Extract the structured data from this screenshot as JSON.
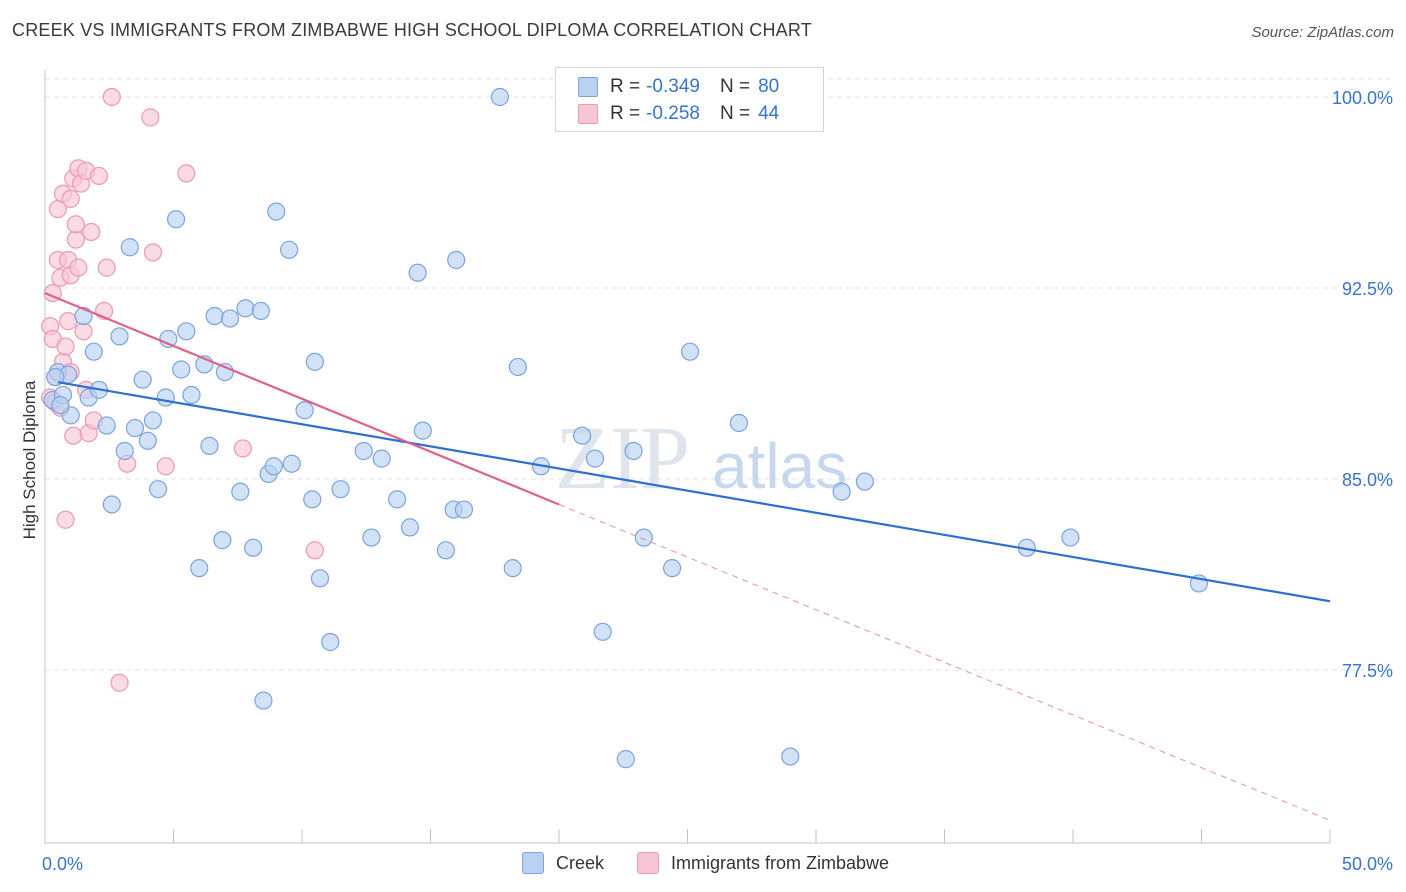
{
  "title": "CREEK VS IMMIGRANTS FROM ZIMBABWE HIGH SCHOOL DIPLOMA CORRELATION CHART",
  "source": "Source: ZipAtlas.com",
  "watermark": {
    "zip": "ZIP",
    "atlas": "atlas"
  },
  "legend": {
    "creek": {
      "r_label": "R =",
      "r_value": "-0.349",
      "n_label": "N =",
      "n_value": "80"
    },
    "zimbabwe": {
      "r_label": "R =",
      "r_value": "-0.258",
      "n_label": "N =",
      "n_value": "44"
    }
  },
  "colors": {
    "creek_fill": "#b9d2f2",
    "creek_stroke": "#7ba3de",
    "creek_line": "#2e6fd0",
    "zim_fill": "#f7c6d4",
    "zim_stroke": "#ec99b2",
    "zim_line": "#e0608c",
    "tick_text": "#3674cd",
    "grid": "#dde2e8"
  },
  "chart_data": {
    "type": "scatter",
    "title": "CREEK VS IMMIGRANTS FROM ZIMBABWE HIGH SCHOOL DIPLOMA CORRELATION CHART",
    "xlabel": "",
    "ylabel": "High School Diploma",
    "xlim": [
      0,
      50
    ],
    "ylim": [
      71.0,
      101.5
    ],
    "x_tick_labels": [
      "0.0%",
      "50.0%"
    ],
    "y_ticks": [
      77.5,
      85.0,
      92.5,
      100.0
    ],
    "y_tick_labels": [
      "77.5%",
      "85.0%",
      "92.5%",
      "100.0%"
    ],
    "grid": true,
    "legend_position": "top-center",
    "series": [
      {
        "name": "Creek",
        "points": [
          [
            0.3,
            88.1
          ],
          [
            0.5,
            89.2
          ],
          [
            0.7,
            88.3
          ],
          [
            0.9,
            89.1
          ],
          [
            1.0,
            87.5
          ],
          [
            1.5,
            91.4
          ],
          [
            1.7,
            88.2
          ],
          [
            1.9,
            90.0
          ],
          [
            2.1,
            88.5
          ],
          [
            2.4,
            87.1
          ],
          [
            2.6,
            84.0
          ],
          [
            2.9,
            90.6
          ],
          [
            3.1,
            86.1
          ],
          [
            3.3,
            94.1
          ],
          [
            3.5,
            87.0
          ],
          [
            3.8,
            88.9
          ],
          [
            4.0,
            86.5
          ],
          [
            4.2,
            87.3
          ],
          [
            4.4,
            84.6
          ],
          [
            4.7,
            88.2
          ],
          [
            4.8,
            90.5
          ],
          [
            5.1,
            95.2
          ],
          [
            5.3,
            89.3
          ],
          [
            5.5,
            90.8
          ],
          [
            5.7,
            88.3
          ],
          [
            6.0,
            81.5
          ],
          [
            6.2,
            89.5
          ],
          [
            6.4,
            86.3
          ],
          [
            6.6,
            91.4
          ],
          [
            6.9,
            82.6
          ],
          [
            7.0,
            89.2
          ],
          [
            7.2,
            91.3
          ],
          [
            7.6,
            84.5
          ],
          [
            7.8,
            91.7
          ],
          [
            8.1,
            82.3
          ],
          [
            8.4,
            91.6
          ],
          [
            8.5,
            76.3
          ],
          [
            8.7,
            85.2
          ],
          [
            8.9,
            85.5
          ],
          [
            9.0,
            95.5
          ],
          [
            9.5,
            94.0
          ],
          [
            9.6,
            85.6
          ],
          [
            10.1,
            87.7
          ],
          [
            10.4,
            84.2
          ],
          [
            10.5,
            89.6
          ],
          [
            10.7,
            81.1
          ],
          [
            11.1,
            78.6
          ],
          [
            11.5,
            84.6
          ],
          [
            12.4,
            86.1
          ],
          [
            12.7,
            82.7
          ],
          [
            13.1,
            85.8
          ],
          [
            13.7,
            84.2
          ],
          [
            14.2,
            83.1
          ],
          [
            14.5,
            93.1
          ],
          [
            14.7,
            86.9
          ],
          [
            15.6,
            82.2
          ],
          [
            15.9,
            83.8
          ],
          [
            16.0,
            93.6
          ],
          [
            16.3,
            83.8
          ],
          [
            17.7,
            100.0
          ],
          [
            18.2,
            81.5
          ],
          [
            18.4,
            89.4
          ],
          [
            19.3,
            85.5
          ],
          [
            20.9,
            86.7
          ],
          [
            21.4,
            85.8
          ],
          [
            21.7,
            79.0
          ],
          [
            22.6,
            74.0
          ],
          [
            22.9,
            86.1
          ],
          [
            23.3,
            82.7
          ],
          [
            24.4,
            81.5
          ],
          [
            25.1,
            90.0
          ],
          [
            27.0,
            87.2
          ],
          [
            29.0,
            74.1
          ],
          [
            31.0,
            84.5
          ],
          [
            31.9,
            84.9
          ],
          [
            38.2,
            82.3
          ],
          [
            39.9,
            82.7
          ],
          [
            44.9,
            80.9
          ],
          [
            0.4,
            89.0
          ],
          [
            0.6,
            87.9
          ]
        ],
        "trend": {
          "x": [
            0.5,
            50.0
          ],
          "y": [
            88.8,
            80.2
          ]
        }
      },
      {
        "name": "Immigrants from Zimbabwe",
        "points": [
          [
            0.2,
            91.0
          ],
          [
            0.2,
            88.2
          ],
          [
            0.3,
            92.3
          ],
          [
            0.3,
            90.5
          ],
          [
            0.4,
            89.0
          ],
          [
            0.4,
            88.0
          ],
          [
            0.5,
            93.6
          ],
          [
            0.5,
            95.6
          ],
          [
            0.6,
            92.9
          ],
          [
            0.6,
            87.8
          ],
          [
            0.7,
            96.2
          ],
          [
            0.7,
            89.6
          ],
          [
            0.8,
            90.2
          ],
          [
            0.8,
            83.4
          ],
          [
            0.9,
            91.2
          ],
          [
            0.9,
            93.6
          ],
          [
            1.0,
            96.0
          ],
          [
            1.0,
            89.2
          ],
          [
            1.0,
            93.0
          ],
          [
            1.1,
            96.8
          ],
          [
            1.1,
            86.7
          ],
          [
            1.2,
            94.4
          ],
          [
            1.2,
            95.0
          ],
          [
            1.3,
            97.2
          ],
          [
            1.3,
            93.3
          ],
          [
            1.4,
            96.6
          ],
          [
            1.5,
            90.8
          ],
          [
            1.6,
            97.1
          ],
          [
            1.6,
            88.5
          ],
          [
            1.7,
            86.8
          ],
          [
            1.8,
            94.7
          ],
          [
            1.9,
            87.3
          ],
          [
            2.1,
            96.9
          ],
          [
            2.3,
            91.6
          ],
          [
            2.4,
            93.3
          ],
          [
            2.6,
            100.0
          ],
          [
            2.9,
            77.0
          ],
          [
            3.2,
            85.6
          ],
          [
            4.1,
            99.2
          ],
          [
            4.2,
            93.9
          ],
          [
            4.7,
            85.5
          ],
          [
            5.5,
            97.0
          ],
          [
            7.7,
            86.2
          ],
          [
            10.5,
            82.2
          ]
        ],
        "trend": {
          "x": [
            0.0,
            20.0
          ],
          "y": [
            92.3,
            84.0
          ]
        },
        "trend_extension": {
          "x": [
            20.0,
            50.0
          ],
          "y": [
            84.0,
            71.6
          ]
        }
      }
    ]
  }
}
